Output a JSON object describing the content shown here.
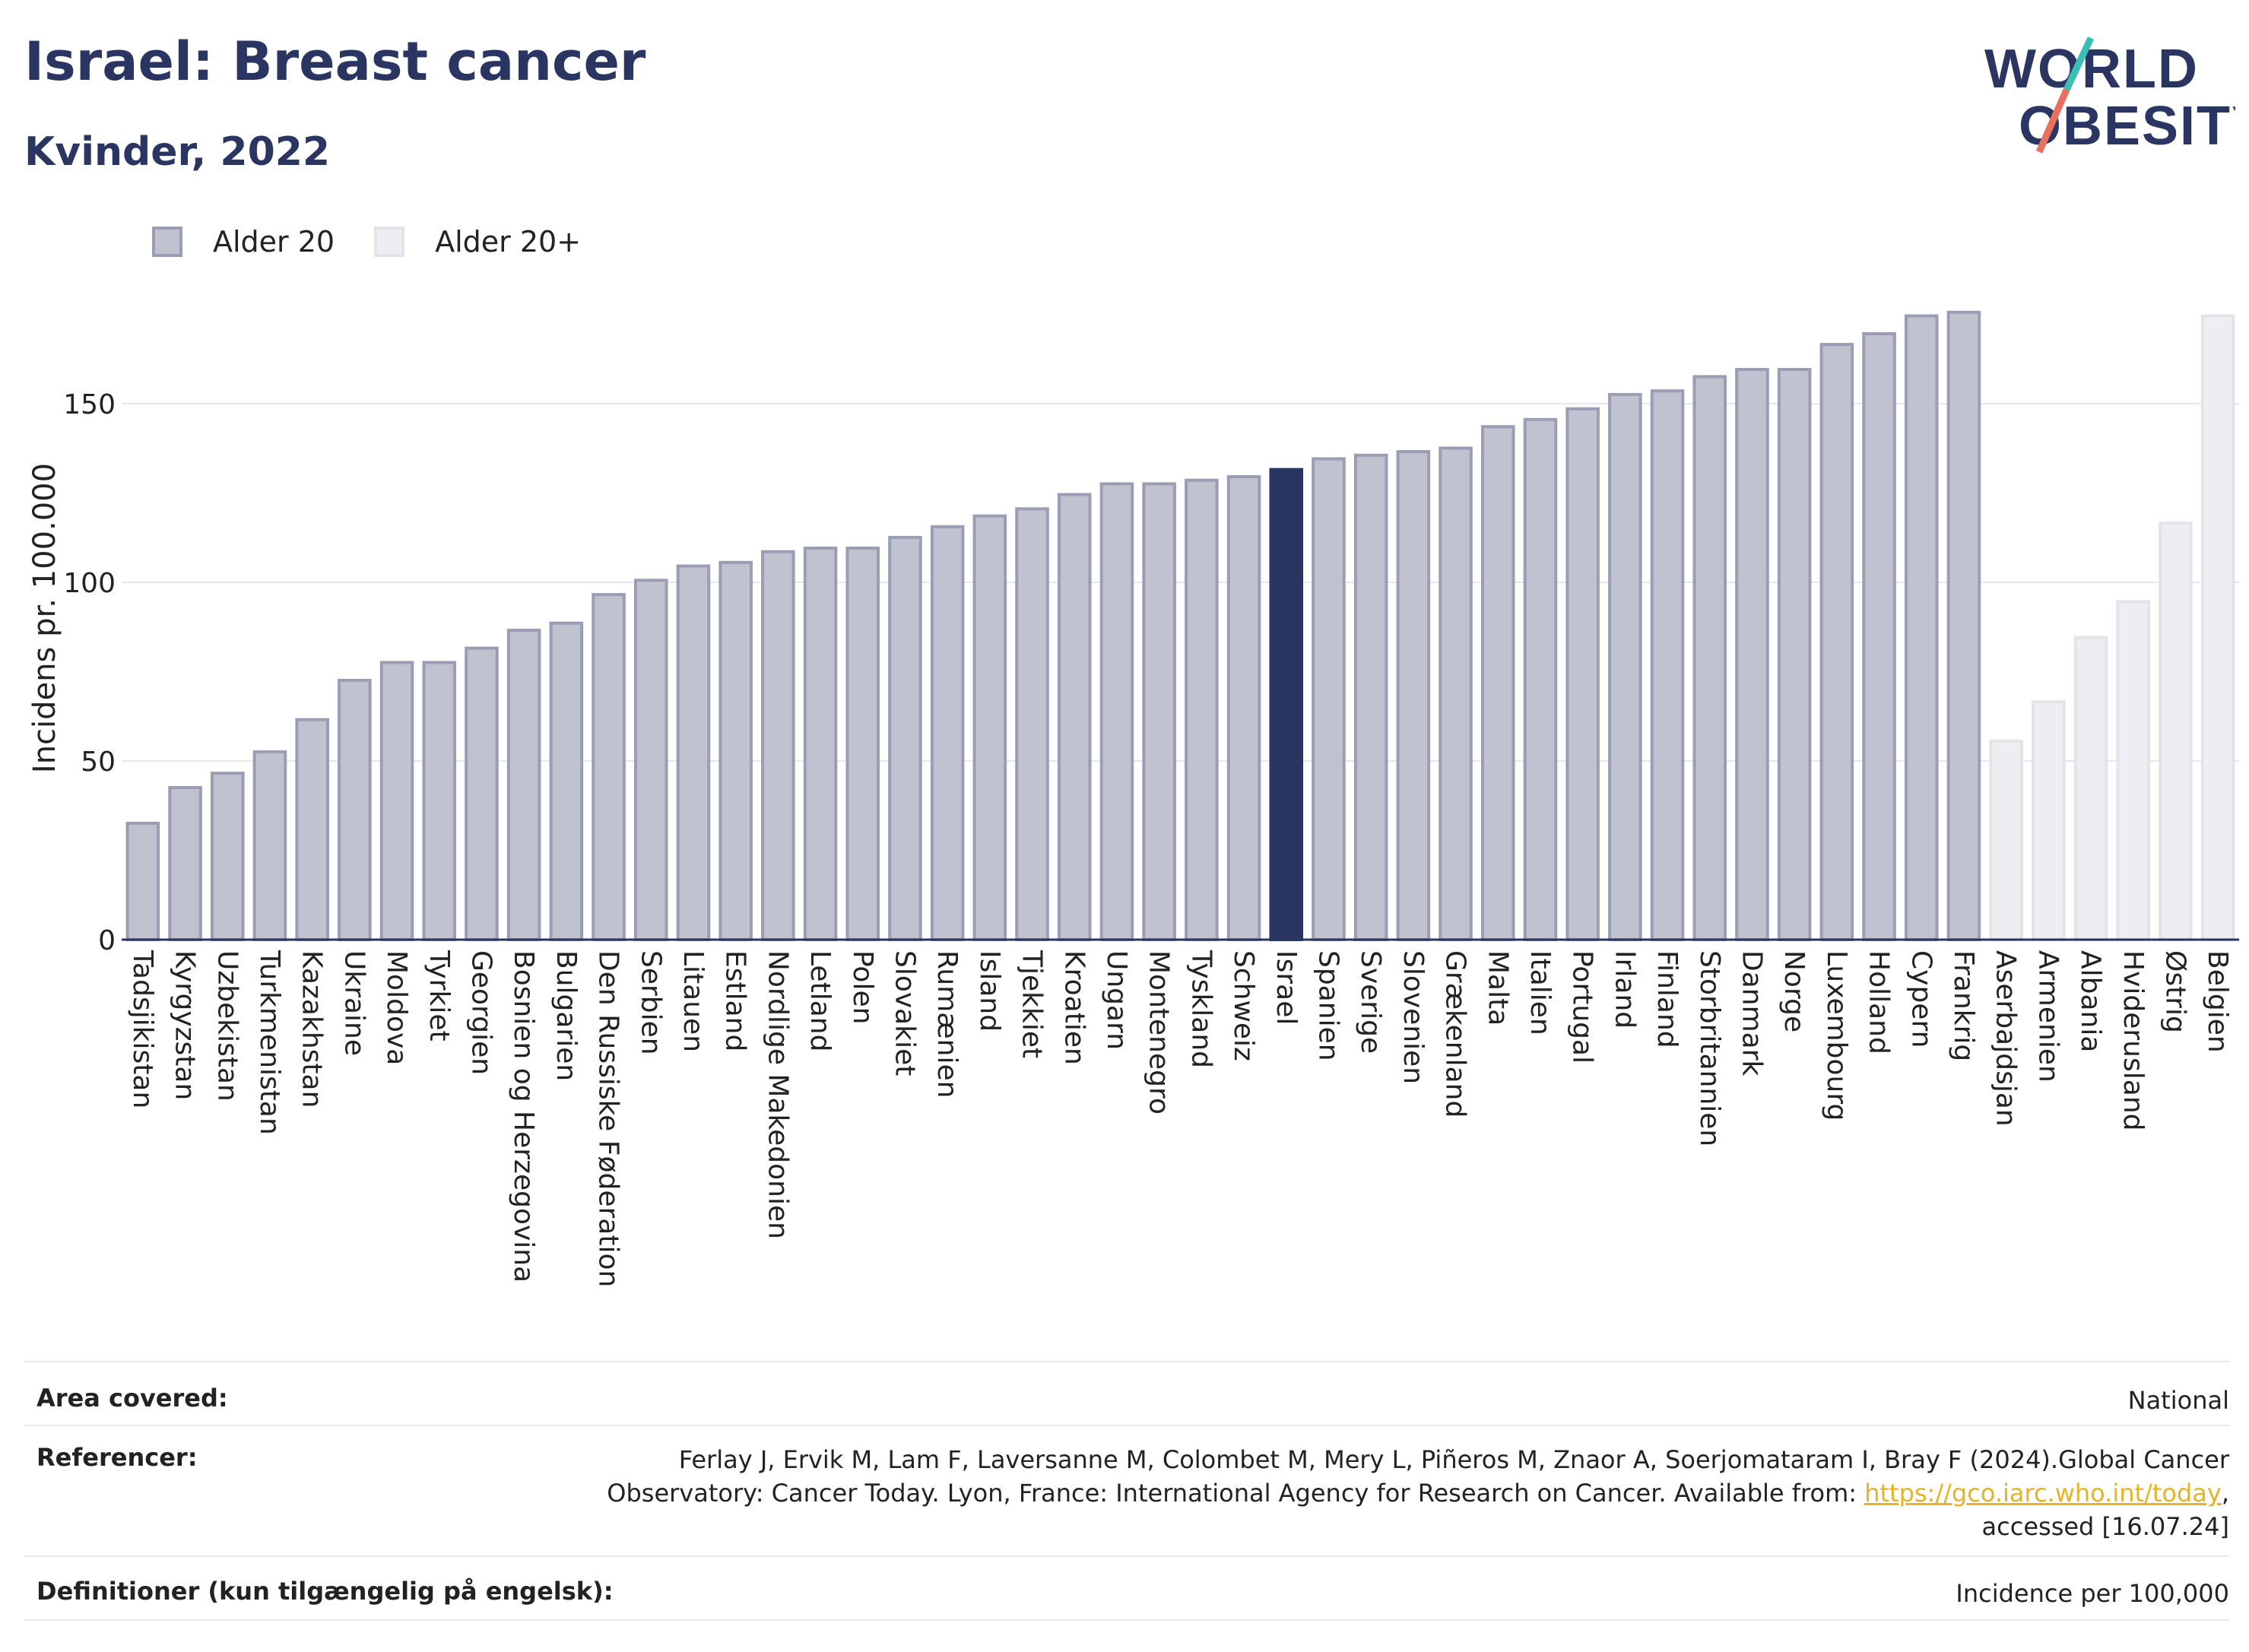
{
  "header": {
    "title": "Israel: Breast cancer",
    "subtitle": "Kvinder, 2022"
  },
  "logo": {
    "line1": "WORLD",
    "line2": "OBESITY"
  },
  "legend": {
    "items": [
      {
        "label": "Alder 20",
        "color": "#c0c2d0"
      },
      {
        "label": "Alder 20+",
        "color": "#eeeef2"
      }
    ]
  },
  "colors": {
    "bar_age20": "#c0c2d0",
    "bar_age20_border": "#9a9db3",
    "bar_age20plus": "#eeeef2",
    "bar_age20plus_border": "#e3e3e9",
    "bar_highlight": "#2a3561",
    "text_primary": "#2a3561",
    "link": "#e6b422"
  },
  "chart_data": {
    "type": "bar",
    "ylabel": "Incidens pr. 100.000",
    "xlabel": "",
    "ylim": [
      0,
      180
    ],
    "yticks": [
      0,
      50,
      100,
      150
    ],
    "grid": true,
    "legend_position": "top-left",
    "highlight": "Israel",
    "categories": [
      "Tadsjikistan",
      "Kyrgyzstan",
      "Uzbekistan",
      "Turkmenistan",
      "Kazakhstan",
      "Ukraine",
      "Moldova",
      "Tyrkiet",
      "Georgien",
      "Bosnien og Herzegovina",
      "Bulgarien",
      "Den Russiske Føderation",
      "Serbien",
      "Litauen",
      "Estland",
      "Nordlige Makedonien",
      "Letland",
      "Polen",
      "Slovakiet",
      "Rumænien",
      "Island",
      "Tjekkiet",
      "Kroatien",
      "Ungarn",
      "Montenegro",
      "Tyskland",
      "Schweiz",
      "Israel",
      "Spanien",
      "Sverige",
      "Slovenien",
      "Grækenland",
      "Malta",
      "Italien",
      "Portugal",
      "Irland",
      "Finland",
      "Storbritannien",
      "Danmark",
      "Norge",
      "Luxembourg",
      "Holland",
      "Cypern",
      "Frankrig",
      "Aserbajdsjan",
      "Armenien",
      "Albania",
      "Hviderusland",
      "Østrig",
      "Belgien"
    ],
    "values": [
      33,
      43,
      47,
      53,
      62,
      73,
      78,
      78,
      82,
      87,
      89,
      97,
      101,
      105,
      106,
      109,
      110,
      110,
      113,
      116,
      119,
      121,
      125,
      128,
      128,
      129,
      130,
      132,
      135,
      136,
      137,
      138,
      144,
      146,
      149,
      153,
      154,
      158,
      160,
      160,
      167,
      170,
      175,
      176,
      56,
      67,
      85,
      95,
      117,
      175
    ],
    "series_assignment": [
      "Alder 20",
      "Alder 20",
      "Alder 20",
      "Alder 20",
      "Alder 20",
      "Alder 20",
      "Alder 20",
      "Alder 20",
      "Alder 20",
      "Alder 20",
      "Alder 20",
      "Alder 20",
      "Alder 20",
      "Alder 20",
      "Alder 20",
      "Alder 20",
      "Alder 20",
      "Alder 20",
      "Alder 20",
      "Alder 20",
      "Alder 20",
      "Alder 20",
      "Alder 20",
      "Alder 20",
      "Alder 20",
      "Alder 20",
      "Alder 20",
      "Alder 20",
      "Alder 20",
      "Alder 20",
      "Alder 20",
      "Alder 20",
      "Alder 20",
      "Alder 20",
      "Alder 20",
      "Alder 20",
      "Alder 20",
      "Alder 20",
      "Alder 20",
      "Alder 20",
      "Alder 20",
      "Alder 20",
      "Alder 20",
      "Alder 20",
      "Alder 20+",
      "Alder 20+",
      "Alder 20+",
      "Alder 20+",
      "Alder 20+",
      "Alder 20+"
    ]
  },
  "meta": {
    "area_label": "Area covered:",
    "area_value": "National",
    "ref_label": "Referencer:",
    "ref_line1": "Ferlay J, Ervik M, Lam F, Laversanne M, Colombet M, Mery L, Piñeros M, Znaor A, Soerjomataram I, Bray F (2024).Global Cancer",
    "ref_line2_pre": "Observatory: Cancer Today. Lyon, France: International Agency for Research on Cancer. Available from: ",
    "ref_link": "https://gco.iarc.who.int/today",
    "ref_line2_post": ",",
    "ref_line3": "accessed [16.07.24]",
    "def_label": "Definitioner (kun tilgængelig på engelsk):",
    "def_value": "Incidence per 100,000"
  }
}
